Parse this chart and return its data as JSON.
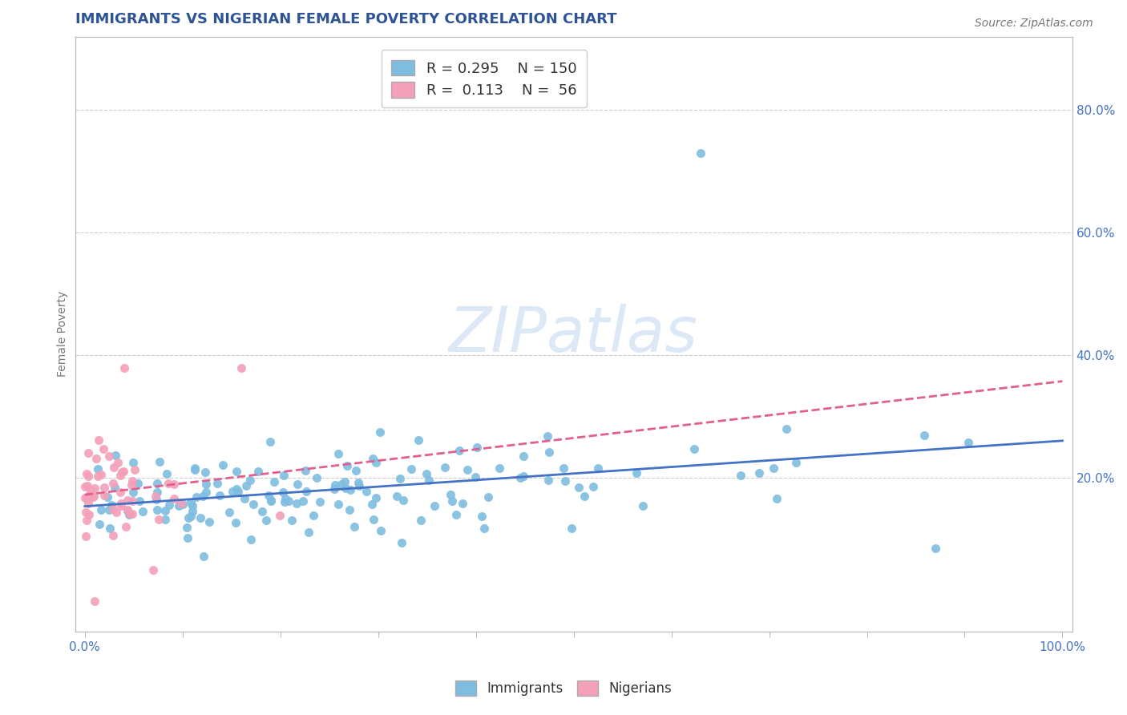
{
  "title": "IMMIGRANTS VS NIGERIAN FEMALE POVERTY CORRELATION CHART",
  "source_text": "Source: ZipAtlas.com",
  "ylabel": "Female Poverty",
  "xlim": [
    -0.01,
    1.01
  ],
  "ylim": [
    -0.05,
    0.92
  ],
  "legend_R1": "0.295",
  "legend_N1": "150",
  "legend_R2": "0.113",
  "legend_N2": "56",
  "blue_color": "#7fbde0",
  "pink_color": "#f4a0b8",
  "blue_line_color": "#4472C4",
  "pink_line_color": "#e06090",
  "watermark_color": "#dce8f5",
  "title_color": "#2F5496",
  "axis_label_color": "#777777",
  "tick_color": "#4472C4",
  "grid_color": "#cccccc",
  "right_yticks": [
    0.0,
    0.2,
    0.4,
    0.6,
    0.8
  ],
  "right_yticklabels": [
    "",
    "20.0%",
    "40.0%",
    "60.0%",
    "80.0%"
  ],
  "xtick_positions": [
    0.0,
    0.1,
    0.2,
    0.3,
    0.4,
    0.5,
    0.6,
    0.7,
    0.8,
    0.9,
    1.0
  ],
  "xticklabels": [
    "0.0%",
    "",
    "",
    "",
    "",
    "",
    "",
    "",
    "",
    "",
    "100.0%"
  ]
}
